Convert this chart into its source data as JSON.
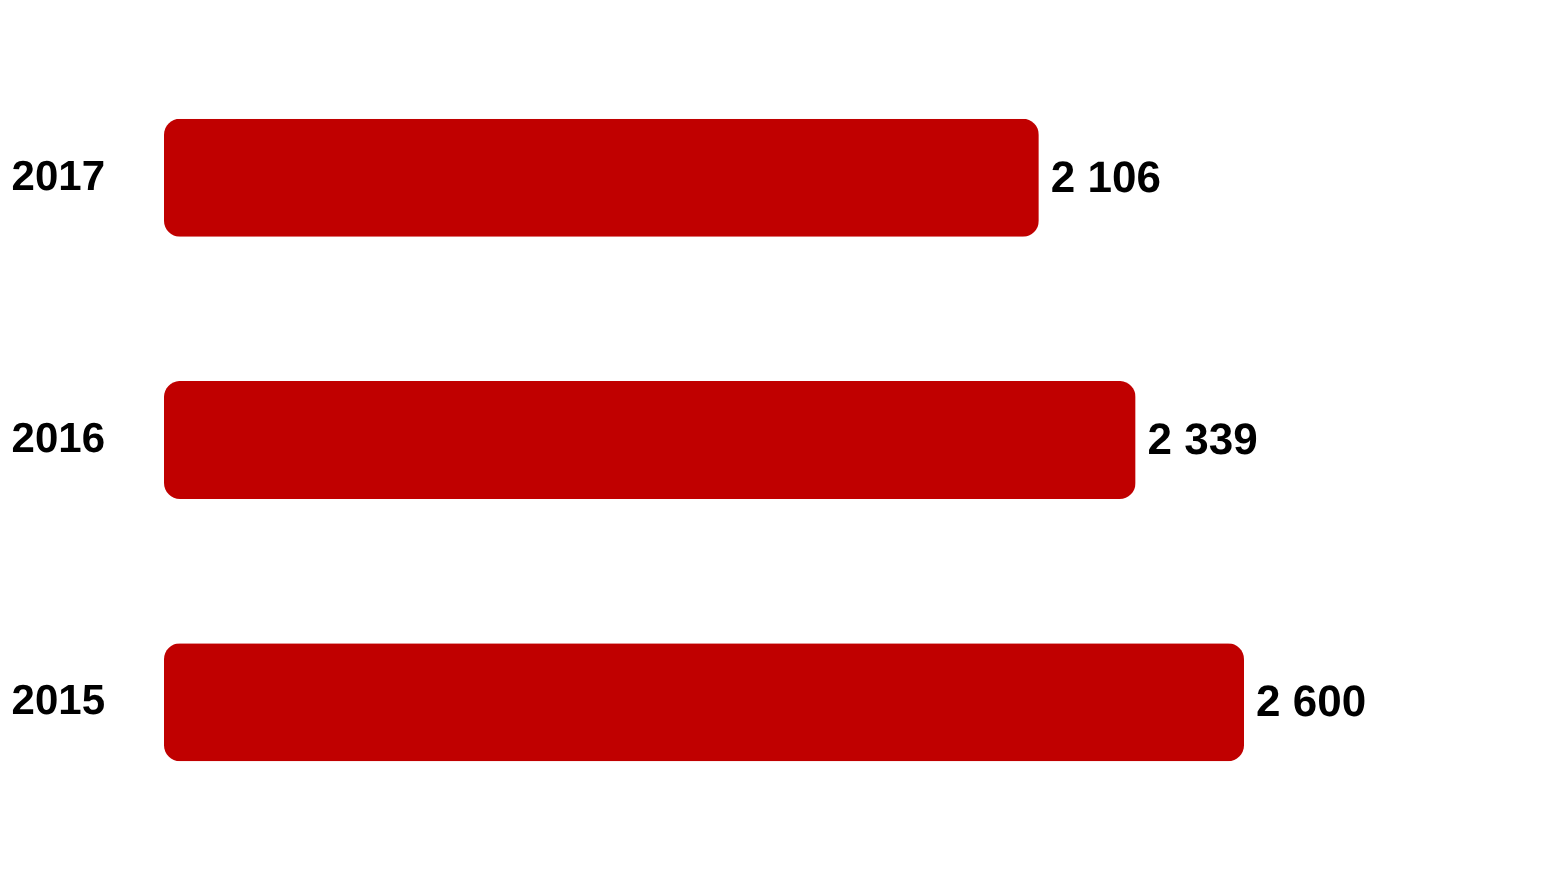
{
  "chart_data": {
    "type": "bar",
    "orientation": "horizontal",
    "categories": [
      "2017",
      "2016",
      "2015"
    ],
    "values": [
      2106,
      2339,
      2600
    ],
    "value_labels": [
      "2 106",
      "2 339",
      "2 600"
    ],
    "color": "#c00000"
  }
}
